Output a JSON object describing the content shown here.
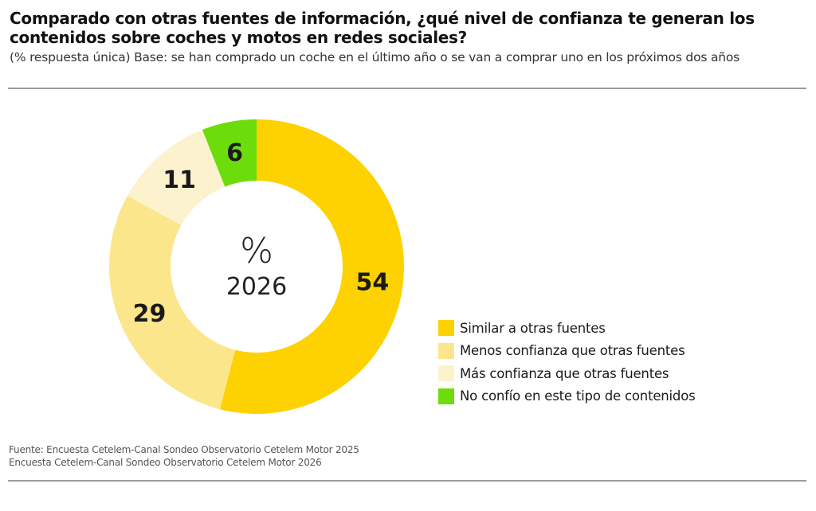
{
  "header": {
    "title": "Comparado con otras fuentes de información, ¿qué nivel de confianza te generan los contenidos sobre coches y motos en redes sociales?",
    "subtitle": "(% respuesta única) Base: se han comprado un coche en el último año o se van a comprar uno en los próximos dos años"
  },
  "chart_data": {
    "type": "pie",
    "variant": "donut",
    "title": "Comparado con otras fuentes de información, ¿qué nivel de confianza te generan los contenidos sobre coches y motos en redes sociales?",
    "center_label": {
      "symbol": "%",
      "year": "2026"
    },
    "categories": [
      "Similar a otras fuentes",
      "Menos confianza que otras fuentes",
      "Más confianza que otras fuentes",
      "No confío en este tipo de contenidos"
    ],
    "values": [
      54,
      29,
      11,
      6
    ],
    "colors": [
      "#FDD200",
      "#FBE68C",
      "#FCF2CE",
      "#6CDC0A"
    ],
    "unit": "%",
    "start": "top",
    "direction": "clockwise",
    "legend_position": "right"
  },
  "footer": {
    "source_lines": [
      "Fuente: Encuesta Cetelem-Canal Sondeo Observatorio Cetelem Motor 2025",
      "Encuesta Cetelem-Canal Sondeo Observatorio Cetelem Motor 2026"
    ]
  }
}
